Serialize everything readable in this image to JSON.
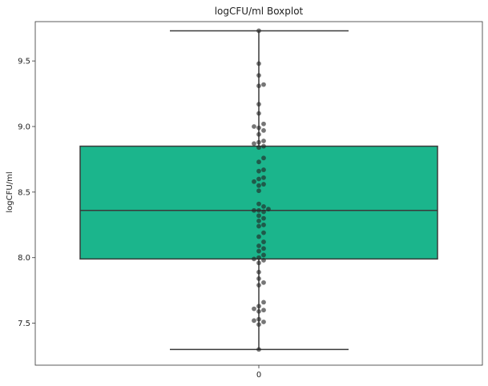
{
  "chart_data": {
    "type": "boxplot",
    "title": "logCFU/ml Boxplot",
    "xlabel": "",
    "ylabel": "logCFU/ml",
    "categories": [
      "0"
    ],
    "yticks": [
      "7.5",
      "8.0",
      "8.5",
      "9.0",
      "9.5"
    ],
    "ylim": [
      7.18,
      9.8
    ],
    "grid": false,
    "box": {
      "min": 7.3,
      "q1": 7.99,
      "median": 8.36,
      "q3": 8.85,
      "max": 9.73
    },
    "points": [
      7.3,
      7.49,
      7.51,
      7.52,
      7.53,
      7.59,
      7.6,
      7.61,
      7.63,
      7.66,
      7.79,
      7.81,
      7.84,
      7.89,
      7.96,
      7.98,
      7.99,
      8.0,
      8.02,
      8.05,
      8.07,
      8.09,
      8.12,
      8.16,
      8.19,
      8.24,
      8.25,
      8.28,
      8.3,
      8.32,
      8.35,
      8.36,
      8.36,
      8.37,
      8.39,
      8.41,
      8.51,
      8.55,
      8.56,
      8.58,
      8.6,
      8.61,
      8.66,
      8.67,
      8.73,
      8.76,
      8.84,
      8.85,
      8.87,
      8.88,
      8.89,
      8.94,
      8.97,
      8.99,
      9.0,
      9.02,
      9.1,
      9.17,
      9.31,
      9.32,
      9.39,
      9.48,
      9.73
    ],
    "colors": {
      "box_fill": "#1bb58c",
      "box_edge": "#3a3a3a",
      "points": "#222222"
    }
  }
}
